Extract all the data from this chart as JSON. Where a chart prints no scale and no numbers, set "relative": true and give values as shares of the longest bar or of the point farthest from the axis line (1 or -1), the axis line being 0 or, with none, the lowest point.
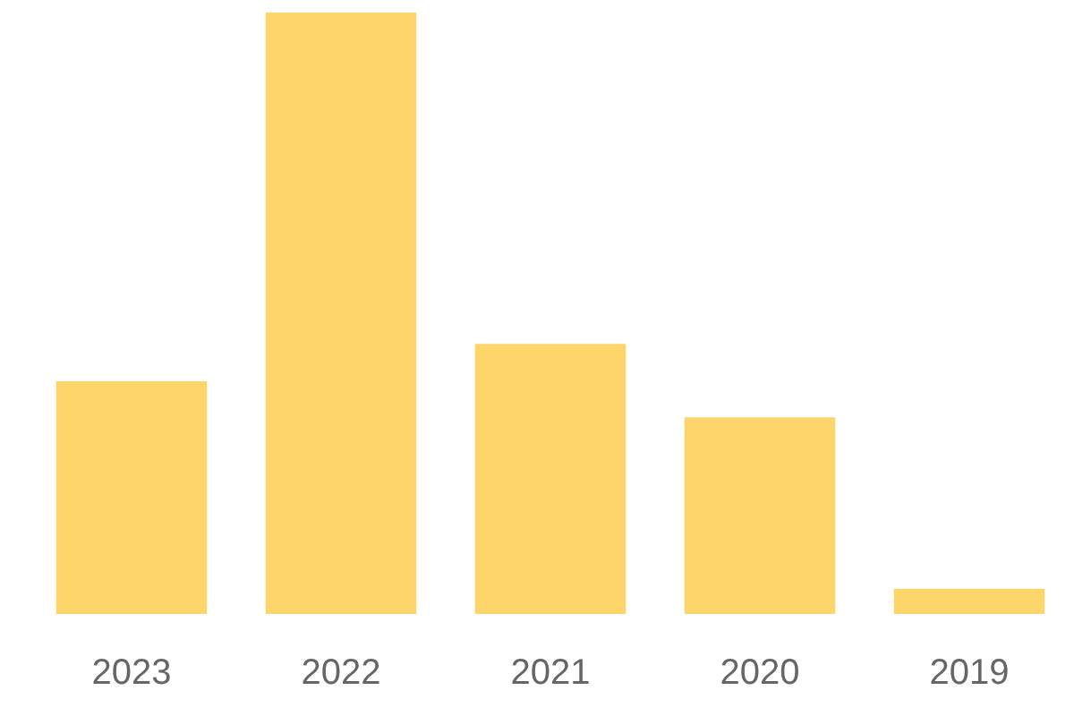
{
  "chart_data": {
    "type": "bar",
    "relative": true,
    "categories": [
      "2023",
      "2022",
      "2021",
      "2020",
      "2019"
    ],
    "values": [
      0.387,
      1,
      0.449,
      0.327,
      0.042
    ],
    "color": "#fdd56a"
  }
}
